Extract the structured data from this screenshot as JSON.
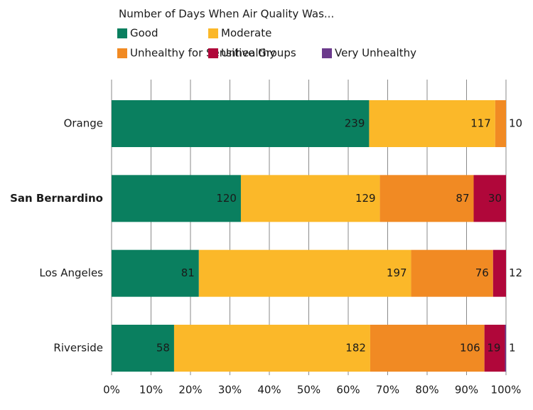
{
  "chart_data": {
    "type": "bar",
    "orientation": "horizontal",
    "stack": "percent",
    "legend_title": "Number of Days When Air Quality Was...",
    "categories": [
      "Orange",
      "San Bernardino",
      "Los Angeles",
      "Riverside"
    ],
    "highlight_category_index": 1,
    "series": [
      {
        "name": "Good",
        "color": "#0a7f5f",
        "label_color": "#ffffff",
        "values": [
          239,
          120,
          81,
          58
        ]
      },
      {
        "name": "Moderate",
        "color": "#fbb829",
        "label_color": "#000000",
        "values": [
          117,
          129,
          197,
          182
        ]
      },
      {
        "name": "Unhealthy for Sensitive Groups",
        "color": "#f18a23",
        "label_color": "#000000",
        "values": [
          10,
          87,
          76,
          106
        ]
      },
      {
        "name": "Unhealthy",
        "color": "#b0073a",
        "label_color": "#ffffff",
        "values": [
          null,
          30,
          12,
          19
        ]
      },
      {
        "name": "Very Unhealthy",
        "color": "#6b3a8c",
        "label_color": "#ffffff",
        "values": [
          null,
          null,
          null,
          1
        ]
      }
    ],
    "xlim": [
      0,
      100
    ],
    "xticks": [
      {
        "value": 0,
        "label": "0%"
      },
      {
        "value": 10,
        "label": "10%"
      },
      {
        "value": 20,
        "label": "20%"
      },
      {
        "value": 30,
        "label": "30%"
      },
      {
        "value": 40,
        "label": "40%"
      },
      {
        "value": 50,
        "label": "50%"
      },
      {
        "value": 60,
        "label": "60%"
      },
      {
        "value": 70,
        "label": "70%"
      },
      {
        "value": 80,
        "label": "80%"
      },
      {
        "value": 90,
        "label": "90%"
      },
      {
        "value": 100,
        "label": "100%"
      }
    ],
    "grid": true
  }
}
